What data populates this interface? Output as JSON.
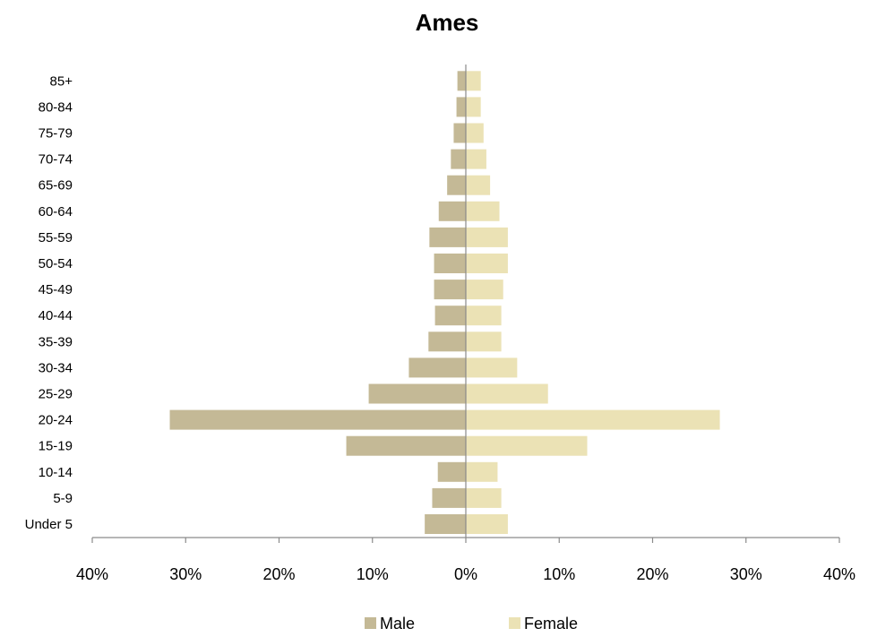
{
  "chart_data": {
    "type": "bar",
    "orientation": "horizontal",
    "title": "Ames",
    "categories": [
      "Under 5",
      "5-9",
      "10-14",
      "15-19",
      "20-24",
      "25-29",
      "30-34",
      "35-39",
      "40-44",
      "45-49",
      "50-54",
      "55-59",
      "60-64",
      "65-69",
      "70-74",
      "75-79",
      "80-84",
      "85+"
    ],
    "series": [
      {
        "name": "Male",
        "color": "#c4b996",
        "values": [
          4.4,
          3.6,
          3.0,
          12.8,
          31.7,
          10.4,
          6.1,
          4.0,
          3.3,
          3.4,
          3.4,
          3.9,
          2.9,
          2.0,
          1.6,
          1.3,
          1.0,
          0.9
        ]
      },
      {
        "name": "Female",
        "color": "#ebe2b5",
        "values": [
          4.5,
          3.8,
          3.4,
          13.0,
          27.2,
          8.8,
          5.5,
          3.8,
          3.8,
          4.0,
          4.5,
          4.5,
          3.6,
          2.6,
          2.2,
          1.9,
          1.6,
          1.6
        ]
      }
    ],
    "xlim": [
      -40,
      40
    ],
    "xticks": [
      -40,
      -30,
      -20,
      -10,
      0,
      10,
      20,
      30,
      40
    ],
    "tick_labels": [
      "40%",
      "30%",
      "20%",
      "10%",
      "0%",
      "10%",
      "20%",
      "30%",
      "40%"
    ],
    "grid": false,
    "legend_position": "bottom"
  }
}
